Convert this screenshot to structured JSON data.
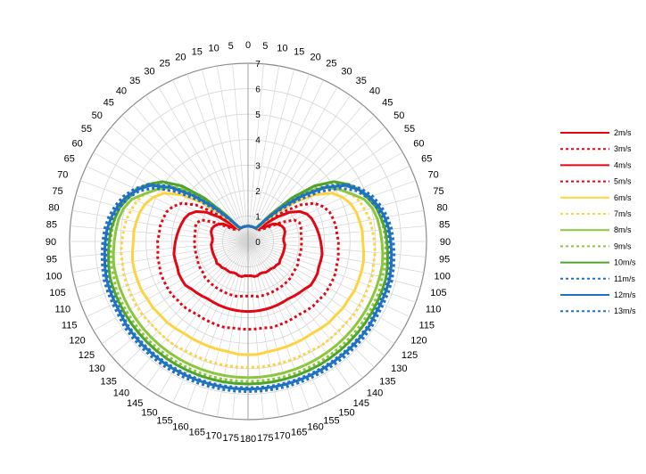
{
  "chart_data": {
    "type": "polar-line",
    "title": "",
    "theta_labels": [
      "0",
      "5",
      "10",
      "15",
      "20",
      "25",
      "30",
      "35",
      "40",
      "45",
      "50",
      "55",
      "60",
      "65",
      "70",
      "75",
      "80",
      "85",
      "90",
      "95",
      "100",
      "105",
      "110",
      "115",
      "120",
      "125",
      "130",
      "135",
      "140",
      "145",
      "150",
      "155",
      "160",
      "165",
      "170",
      "175",
      "180"
    ],
    "theta_step_deg": 5,
    "radial_ticks": [
      "0",
      "1",
      "2",
      "3",
      "4",
      "5",
      "6",
      "7"
    ],
    "rlim": [
      0,
      7
    ],
    "grid": true,
    "legend_position": "right",
    "colors": {
      "red": "#e30613",
      "yellow": "#ffd23f",
      "green": "#8cc63e",
      "darkgreen": "#4fa52b",
      "blue": "#1f72c3",
      "axis": "#a0a0a0"
    },
    "series": [
      {
        "name": "2m/s",
        "color": "#e30613",
        "dash": "solid",
        "radius": [
          0.6,
          0.6,
          0.6,
          0.6,
          0.6,
          0.6,
          0.6,
          0.65,
          0.7,
          0.75,
          0.9,
          1.2,
          1.35,
          1.45,
          1.5,
          1.5,
          1.45,
          1.4,
          1.4,
          1.45,
          1.45,
          1.45,
          1.45,
          1.45,
          1.45,
          1.5,
          1.45,
          1.45,
          1.4,
          1.4,
          1.4,
          1.35,
          1.35,
          1.4,
          1.4,
          1.35,
          1.35
        ]
      },
      {
        "name": "3m/s",
        "color": "#e30613",
        "dash": "dashed",
        "radius": [
          0.6,
          0.6,
          0.6,
          0.6,
          0.6,
          0.6,
          0.6,
          0.6,
          0.6,
          0.65,
          0.75,
          1.0,
          1.5,
          2.0,
          2.15,
          2.15,
          2.1,
          2.1,
          2.1,
          2.1,
          2.1,
          2.1,
          2.1,
          2.15,
          2.15,
          2.15,
          2.2,
          2.2,
          2.2,
          2.2,
          2.2,
          2.2,
          2.2,
          2.2,
          2.2,
          2.15,
          2.15
        ]
      },
      {
        "name": "4m/s",
        "color": "#e30613",
        "dash": "solid",
        "radius": [
          0.6,
          0.6,
          0.6,
          0.6,
          0.6,
          0.6,
          0.6,
          0.6,
          0.7,
          1.0,
          1.5,
          2.0,
          2.35,
          2.55,
          2.65,
          2.7,
          2.75,
          2.8,
          2.85,
          2.9,
          2.95,
          2.95,
          2.95,
          3.0,
          3.0,
          3.0,
          2.9,
          2.85,
          2.8,
          2.75,
          2.75,
          2.75,
          2.75,
          2.75,
          2.75,
          2.75,
          2.75
        ]
      },
      {
        "name": "5m/s",
        "color": "#e30613",
        "dash": "dashed",
        "radius": [
          0.6,
          0.6,
          0.6,
          0.6,
          0.6,
          0.6,
          0.6,
          0.6,
          0.7,
          1.2,
          1.8,
          2.5,
          3.0,
          3.25,
          3.4,
          3.45,
          3.5,
          3.5,
          3.55,
          3.55,
          3.6,
          3.6,
          3.65,
          3.65,
          3.65,
          3.65,
          3.6,
          3.6,
          3.55,
          3.5,
          3.5,
          3.5,
          3.5,
          3.5,
          3.45,
          3.45,
          3.45
        ]
      },
      {
        "name": "6m/s",
        "color": "#ffd23f",
        "dash": "solid",
        "radius": [
          0.6,
          0.6,
          0.6,
          0.6,
          0.6,
          0.6,
          0.6,
          0.65,
          1.0,
          1.6,
          2.4,
          3.2,
          3.8,
          4.1,
          4.3,
          4.4,
          4.45,
          4.5,
          4.5,
          4.55,
          4.6,
          4.6,
          4.6,
          4.6,
          4.55,
          4.55,
          4.5,
          4.5,
          4.45,
          4.4,
          4.4,
          4.4,
          4.4,
          4.4,
          4.4,
          4.45,
          4.45
        ]
      },
      {
        "name": "7m/s",
        "color": "#ffd23f",
        "dash": "dashed",
        "radius": [
          0.6,
          0.6,
          0.6,
          0.6,
          0.6,
          0.6,
          0.6,
          0.7,
          1.1,
          1.8,
          2.7,
          3.5,
          4.1,
          4.45,
          4.65,
          4.75,
          4.85,
          4.9,
          4.95,
          5.0,
          5.0,
          5.05,
          5.05,
          5.05,
          5.05,
          5.05,
          5.0,
          5.0,
          5.0,
          5.0,
          4.95,
          4.95,
          4.95,
          4.95,
          4.95,
          4.95,
          4.95
        ]
      },
      {
        "name": "8m/s",
        "color": "#8cc63e",
        "dash": "solid",
        "radius": [
          0.6,
          0.6,
          0.6,
          0.6,
          0.6,
          0.6,
          0.6,
          0.75,
          1.3,
          2.2,
          3.1,
          3.7,
          4.1,
          4.45,
          4.85,
          5.05,
          5.15,
          5.2,
          5.25,
          5.3,
          5.35,
          5.35,
          5.35,
          5.35,
          5.35,
          5.35,
          5.35,
          5.35,
          5.35,
          5.35,
          5.35,
          5.35,
          5.35,
          5.35,
          5.35,
          5.35,
          5.35
        ]
      },
      {
        "name": "9m/s",
        "color": "#8cc63e",
        "dash": "dashed",
        "radius": [
          0.6,
          0.6,
          0.6,
          0.6,
          0.6,
          0.6,
          0.6,
          0.8,
          1.4,
          2.3,
          3.3,
          4.0,
          4.5,
          4.85,
          5.05,
          5.2,
          5.3,
          5.35,
          5.4,
          5.4,
          5.45,
          5.45,
          5.5,
          5.5,
          5.5,
          5.5,
          5.5,
          5.5,
          5.5,
          5.5,
          5.5,
          5.5,
          5.5,
          5.5,
          5.5,
          5.5,
          5.5
        ]
      },
      {
        "name": "10m/s",
        "color": "#4fa52b",
        "dash": "solid",
        "radius": [
          0.6,
          0.6,
          0.6,
          0.6,
          0.6,
          0.6,
          0.6,
          0.8,
          1.4,
          2.4,
          3.4,
          4.1,
          4.5,
          4.8,
          5.0,
          5.2,
          5.3,
          5.4,
          5.45,
          5.5,
          5.55,
          5.6,
          5.6,
          5.6,
          5.6,
          5.6,
          5.6,
          5.6,
          5.6,
          5.6,
          5.6,
          5.6,
          5.6,
          5.6,
          5.6,
          5.6,
          5.6
        ]
      },
      {
        "name": "11m/s",
        "color": "#1f72c3",
        "dash": "dashed",
        "radius": [
          0.6,
          0.6,
          0.6,
          0.6,
          0.6,
          0.6,
          0.6,
          0.75,
          1.1,
          1.7,
          2.5,
          3.4,
          4.2,
          4.7,
          5.0,
          5.2,
          5.4,
          5.5,
          5.55,
          5.6,
          5.65,
          5.7,
          5.7,
          5.7,
          5.7,
          5.75,
          5.75,
          5.75,
          5.75,
          5.75,
          5.75,
          5.75,
          5.75,
          5.75,
          5.75,
          5.75,
          5.75
        ]
      },
      {
        "name": "12m/s",
        "color": "#1f72c3",
        "dash": "solid",
        "radius": [
          0.6,
          0.6,
          0.6,
          0.6,
          0.6,
          0.6,
          0.6,
          0.75,
          1.2,
          1.9,
          2.8,
          3.7,
          4.4,
          4.8,
          5.1,
          5.3,
          5.45,
          5.55,
          5.6,
          5.65,
          5.7,
          5.75,
          5.75,
          5.75,
          5.75,
          5.8,
          5.8,
          5.8,
          5.8,
          5.8,
          5.8,
          5.8,
          5.8,
          5.8,
          5.8,
          5.8,
          5.8
        ]
      },
      {
        "name": "13m/s",
        "color": "#1f72c3",
        "dash": "dashed",
        "radius": [
          0.6,
          0.6,
          0.6,
          0.6,
          0.6,
          0.6,
          0.6,
          0.75,
          1.2,
          2.0,
          2.9,
          3.8,
          4.5,
          4.9,
          5.2,
          5.4,
          5.55,
          5.65,
          5.7,
          5.75,
          5.8,
          5.85,
          5.85,
          5.85,
          5.85,
          5.9,
          5.9,
          5.9,
          5.9,
          5.9,
          5.9,
          5.9,
          5.9,
          5.9,
          5.9,
          5.9,
          5.9
        ]
      }
    ]
  }
}
